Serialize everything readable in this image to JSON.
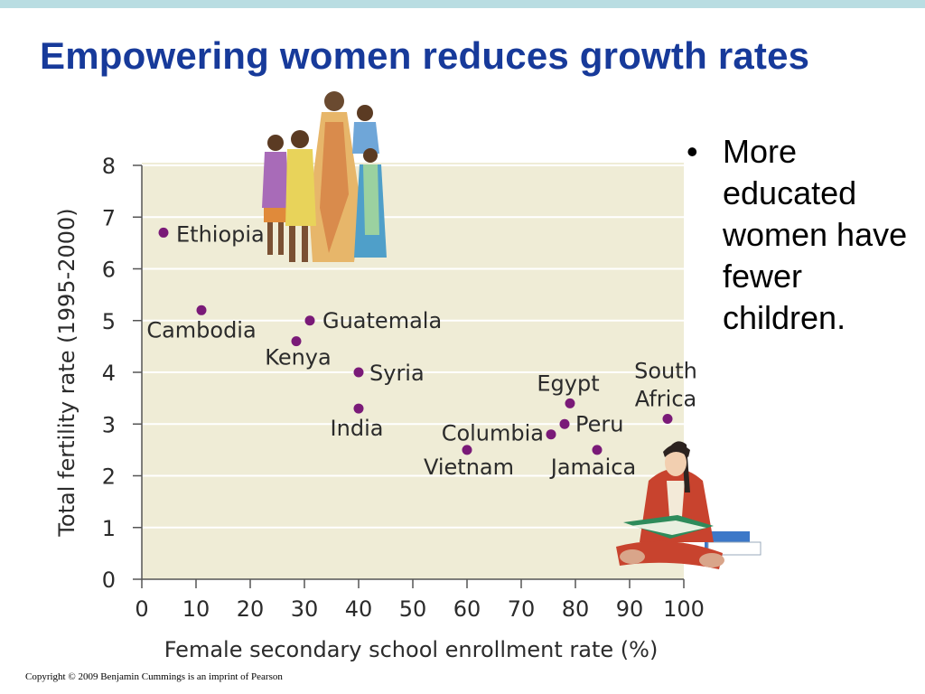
{
  "slide": {
    "title": "Empowering women reduces growth rates",
    "bullets": [
      {
        "bullet_icon": "bullet-dot-icon",
        "text": "More educated women have fewer children."
      }
    ],
    "copyright": "Copyright © 2009 Benjamin Cummings is an imprint of Pearson",
    "colors": {
      "title": "#173a9a",
      "top_band": "#b9dde2",
      "plot_background": "#efecd6",
      "point": "#7a1a78",
      "axis": "#555555"
    },
    "illustrations": [
      "women-and-children-illustration",
      "girl-reading-book-illustration"
    ]
  },
  "chart_data": {
    "type": "scatter",
    "title": "",
    "xlabel": "Female secondary school enrollment rate (%)",
    "ylabel": "Total fertility rate (1995-2000)",
    "xlim": [
      0,
      100
    ],
    "ylim": [
      0,
      8
    ],
    "xticks": [
      "0",
      "10",
      "20",
      "30",
      "40",
      "50",
      "60",
      "70",
      "80",
      "90",
      "100"
    ],
    "yticks": [
      "0",
      "1",
      "2",
      "3",
      "4",
      "5",
      "6",
      "7",
      "8"
    ],
    "grid": true,
    "points": [
      {
        "label": "Ethiopia",
        "x": 4,
        "y": 6.7
      },
      {
        "label": "Cambodia",
        "x": 11,
        "y": 5.2
      },
      {
        "label": "Guatemala",
        "x": 31,
        "y": 5.0
      },
      {
        "label": "Kenya",
        "x": 28.5,
        "y": 4.6
      },
      {
        "label": "Syria",
        "x": 40,
        "y": 4.0
      },
      {
        "label": "India",
        "x": 40,
        "y": 3.3
      },
      {
        "label": "Egypt",
        "x": 79,
        "y": 3.4
      },
      {
        "label": "Peru",
        "x": 78,
        "y": 3.0
      },
      {
        "label": "Columbia",
        "x": 75.5,
        "y": 2.8
      },
      {
        "label": "Vietnam",
        "x": 60,
        "y": 2.5
      },
      {
        "label": "Jamaica",
        "x": 84,
        "y": 2.5
      },
      {
        "label": "South Africa",
        "x": 97,
        "y": 3.1
      }
    ]
  }
}
